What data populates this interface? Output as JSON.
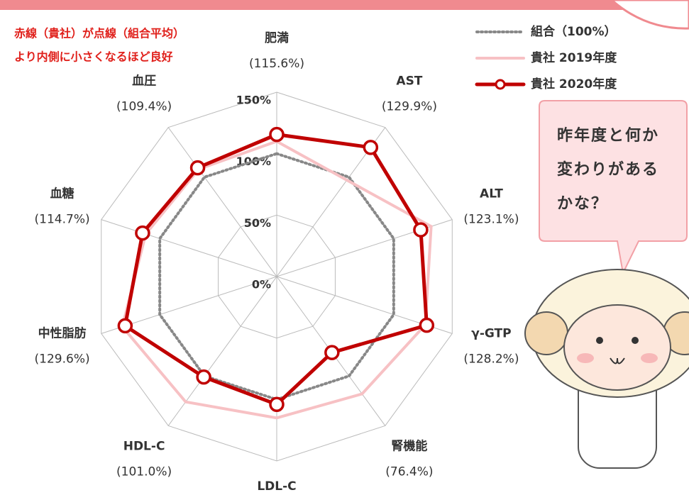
{
  "chart_data": {
    "type": "radar",
    "notes": [
      "赤線（貴社）が点線（組合平均）",
      "より内側に小さくなるほど良好"
    ],
    "bubble": [
      "昨年度と何か",
      "変わりがある",
      "かな？"
    ],
    "categories": [
      "肥満",
      "AST",
      "ALT",
      "γ-GTP",
      "腎機能",
      "LDL-C",
      "HDL-C",
      "中性脂肪",
      "血糖",
      "血圧"
    ],
    "rlim": [
      0,
      150
    ],
    "rticks": [
      {
        "value": 0,
        "label": "0%"
      },
      {
        "value": 50,
        "label": "50%"
      },
      {
        "value": 100,
        "label": "100%"
      },
      {
        "value": 150,
        "label": "150%"
      }
    ],
    "series": [
      {
        "name": "組合（100%）",
        "color": "#888888",
        "style": "dotted",
        "values": [
          100,
          100,
          100,
          100,
          100,
          100,
          100,
          100,
          100,
          100
        ]
      },
      {
        "name": "貴社 2019年度",
        "color": "#f7c1c4",
        "style": "solid",
        "values": [
          110,
          97,
          132,
          127,
          118,
          115,
          126,
          132,
          112,
          108
        ]
      },
      {
        "name": "貴社 2020年度",
        "color": "#c00000",
        "style": "solid",
        "marker": true,
        "values": [
          115.6,
          129.9,
          123.1,
          128.2,
          76.4,
          104,
          101.0,
          129.6,
          114.7,
          109.4
        ],
        "value_labels": [
          "(115.6%)",
          "(129.9%)",
          "(123.1%)",
          "(128.2%)",
          "(76.4%)",
          null,
          "(101.0%)",
          "(129.6%)",
          "(114.7%)",
          "(109.4%)"
        ]
      }
    ]
  }
}
